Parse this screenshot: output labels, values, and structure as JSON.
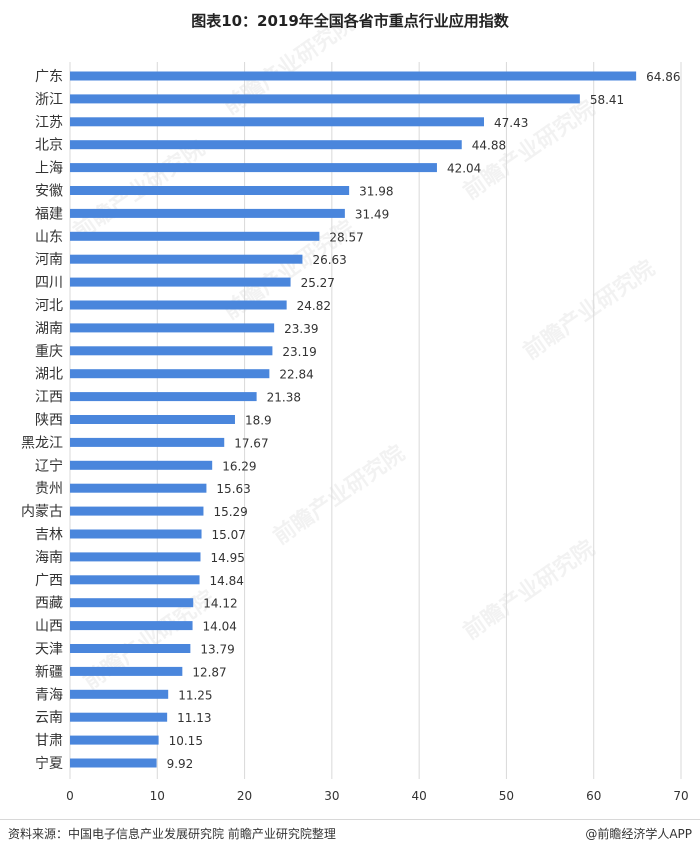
{
  "title": "图表10：2019年全国各省市重点行业应用指数",
  "footer": {
    "source": "资料来源：中国电子信息产业发展研究院 前瞻产业研究院整理",
    "credit": "@前瞻经济学人APP"
  },
  "watermark": "前瞻产业研究院",
  "colors": {
    "bar": "#4a86dc",
    "grid": "#d9d9d9",
    "text": "#333333"
  },
  "chart_data": {
    "type": "bar",
    "orientation": "horizontal",
    "title": "图表10：2019年全国各省市重点行业应用指数",
    "categories": [
      "广东",
      "浙江",
      "江苏",
      "北京",
      "上海",
      "安徽",
      "福建",
      "山东",
      "河南",
      "四川",
      "河北",
      "湖南",
      "重庆",
      "湖北",
      "江西",
      "陕西",
      "黑龙江",
      "辽宁",
      "贵州",
      "内蒙古",
      "吉林",
      "海南",
      "广西",
      "西藏",
      "山西",
      "天津",
      "新疆",
      "青海",
      "云南",
      "甘肃",
      "宁夏"
    ],
    "values": [
      64.86,
      58.41,
      47.43,
      44.88,
      42.04,
      31.98,
      31.49,
      28.57,
      26.63,
      25.27,
      24.82,
      23.39,
      23.19,
      22.84,
      21.38,
      18.9,
      17.67,
      16.29,
      15.63,
      15.29,
      15.07,
      14.95,
      14.84,
      14.12,
      14.04,
      13.79,
      12.87,
      11.25,
      11.13,
      10.15,
      9.92
    ],
    "value_labels": [
      "64.86",
      "58.41",
      "47.43",
      "44.88",
      "42.04",
      "31.98",
      "31.49",
      "28.57",
      "26.63",
      "25.27",
      "24.82",
      "23.39",
      "23.19",
      "22.84",
      "21.38",
      "18.9",
      "17.67",
      "16.29",
      "15.63",
      "15.29",
      "15.07",
      "14.95",
      "14.84",
      "14.12",
      "14.04",
      "13.79",
      "12.87",
      "11.25",
      "11.13",
      "10.15",
      "9.92"
    ],
    "xlim": [
      0,
      70
    ],
    "xticks": [
      "0",
      "10",
      "20",
      "30",
      "40",
      "50",
      "60",
      "70"
    ],
    "grid": true
  }
}
